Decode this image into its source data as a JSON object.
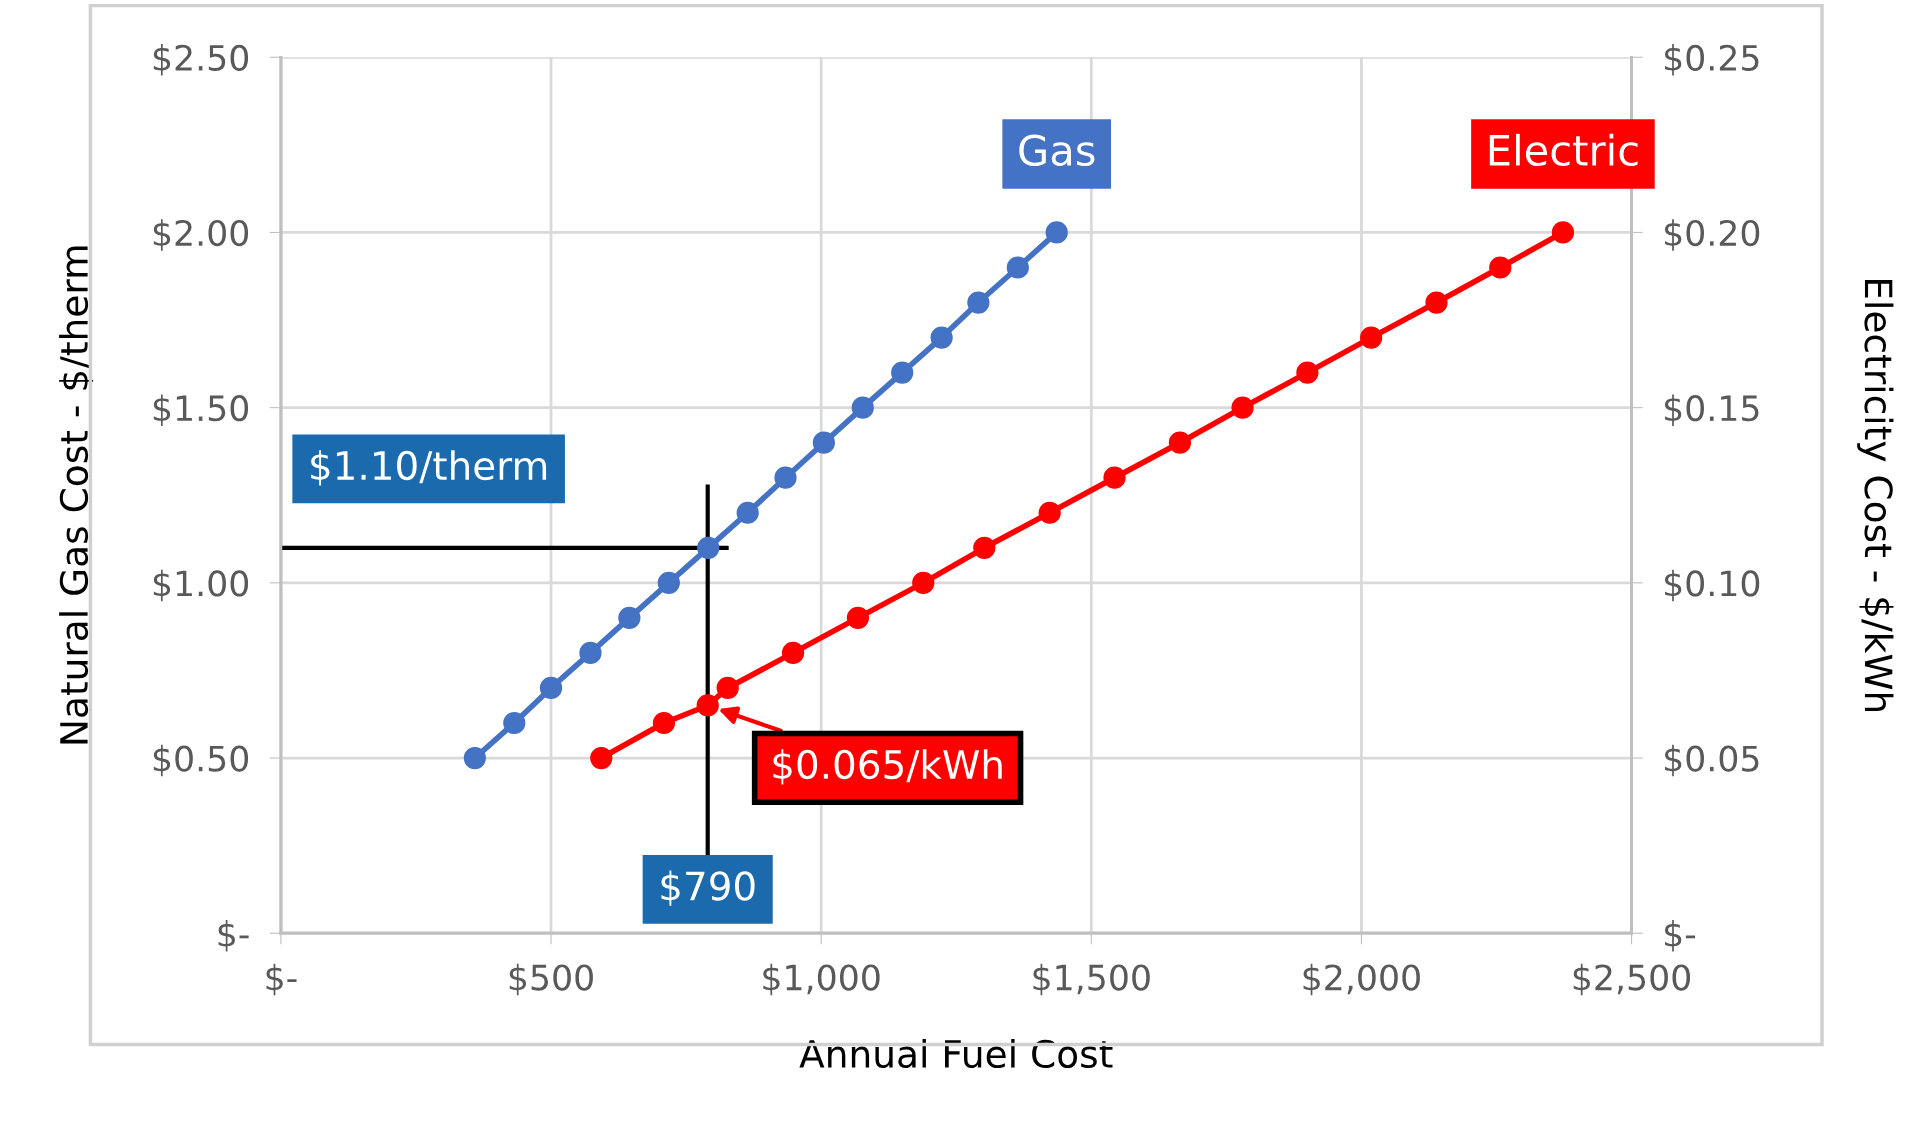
{
  "chart_data": {
    "type": "line",
    "xlabel": "Annual Fuel Cost",
    "ylabel": "Natural Gas Cost - $/therm",
    "y2label": "Electricity Cost - $/kWh",
    "xlim": [
      0,
      2500
    ],
    "xticks": [
      {
        "value": 0,
        "label": "$-"
      },
      {
        "value": 500,
        "label": "$500"
      },
      {
        "value": 1000,
        "label": "$1,000"
      },
      {
        "value": 1500,
        "label": "$1,500"
      },
      {
        "value": 2000,
        "label": "$2,000"
      },
      {
        "value": 2500,
        "label": "$2,500"
      }
    ],
    "ylim": [
      0,
      2.5
    ],
    "yticks": [
      {
        "value": 0,
        "label": "$-"
      },
      {
        "value": 0.5,
        "label": "$0.50"
      },
      {
        "value": 1.0,
        "label": "$1.00"
      },
      {
        "value": 1.5,
        "label": "$1.50"
      },
      {
        "value": 2.0,
        "label": "$2.00"
      },
      {
        "value": 2.5,
        "label": "$2.50"
      }
    ],
    "y2lim": [
      0,
      0.25
    ],
    "y2ticks": [
      {
        "value": 0,
        "label": "$-"
      },
      {
        "value": 0.05,
        "label": "$0.05"
      },
      {
        "value": 0.1,
        "label": "$0.10"
      },
      {
        "value": 0.15,
        "label": "$0.15"
      },
      {
        "value": 0.2,
        "label": "$0.20"
      },
      {
        "value": 0.25,
        "label": "$0.25"
      }
    ],
    "grid": true,
    "marker": "circle",
    "line_style": "solid",
    "legend": false,
    "series": [
      {
        "name": "Gas",
        "color": "#4472c4",
        "x": [
          359,
          432,
          500,
          573,
          645,
          718,
          791,
          864,
          934,
          1005,
          1077,
          1150,
          1223,
          1291,
          1364,
          1436
        ],
        "values": [
          0.5,
          0.6,
          0.7,
          0.8,
          0.9,
          1.0,
          1.1,
          1.2,
          1.3,
          1.4,
          1.5,
          1.6,
          1.7,
          1.8,
          1.9,
          2.0
        ]
      },
      {
        "name": "Electric",
        "color": "#ff0000",
        "axis": "y2",
        "x": [
          593,
          709,
          790,
          827,
          948,
          1068,
          1189,
          1302,
          1423,
          1543,
          1664,
          1780,
          1900,
          2018,
          2139,
          2257,
          2373
        ],
        "values": [
          0.05,
          0.06,
          0.065,
          0.07,
          0.08,
          0.09,
          0.1,
          0.11,
          0.12,
          0.13,
          0.14,
          0.15,
          0.16,
          0.17,
          0.18,
          0.19,
          0.2
        ]
      }
    ],
    "ref_lines": [
      {
        "axis": "y",
        "value": 1.1,
        "label": "$1.10/therm",
        "color": "#000000"
      },
      {
        "axis": "x",
        "value": 790,
        "label": "$790",
        "color": "#000000"
      }
    ],
    "annotations": [
      {
        "text": "$0.065/kWh",
        "x": 790,
        "y": 0.65
      }
    ]
  }
}
